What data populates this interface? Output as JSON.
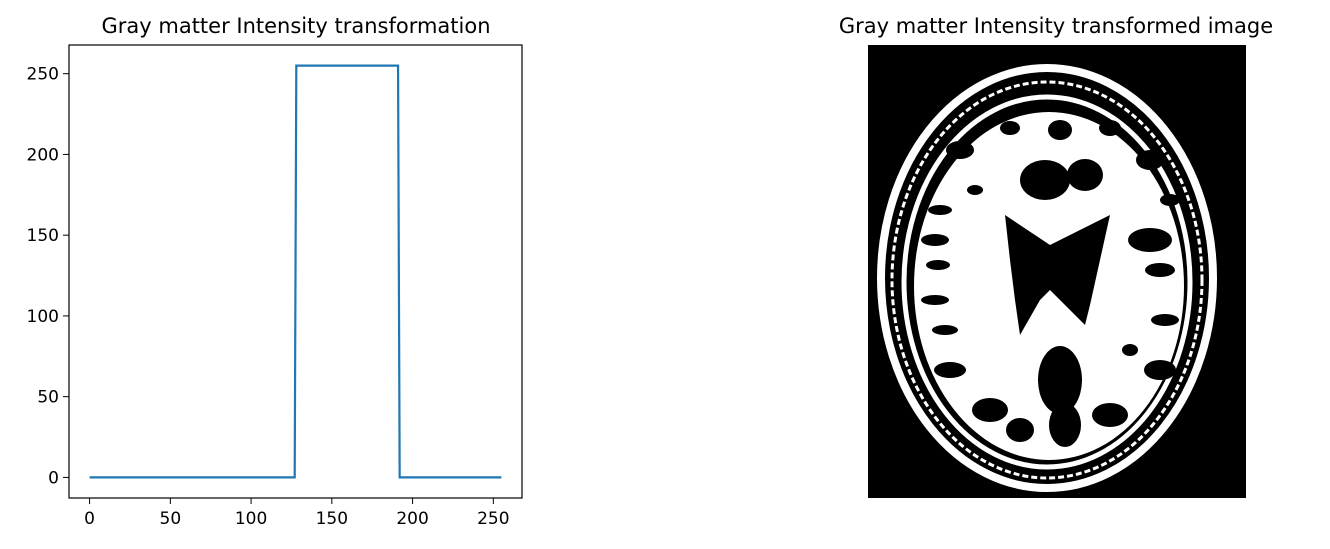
{
  "chart_data": [
    {
      "type": "line",
      "title": "Gray matter Intensity transformation",
      "xlim": [
        -12.75,
        267.75
      ],
      "ylim": [
        -12.75,
        267.75
      ],
      "x_ticks": [
        0,
        50,
        100,
        150,
        200,
        250
      ],
      "y_ticks": [
        0,
        50,
        100,
        150,
        200,
        250
      ],
      "grid": false,
      "series": [
        {
          "color": "#1f77b4",
          "x": [
            0,
            127,
            128,
            191,
            192,
            255
          ],
          "y": [
            0,
            0,
            255,
            255,
            0,
            0
          ]
        }
      ]
    },
    {
      "type": "image",
      "title": "Gray matter Intensity transformed image",
      "description_colors": {
        "background": "#000000",
        "foreground": "#ffffff"
      }
    }
  ]
}
